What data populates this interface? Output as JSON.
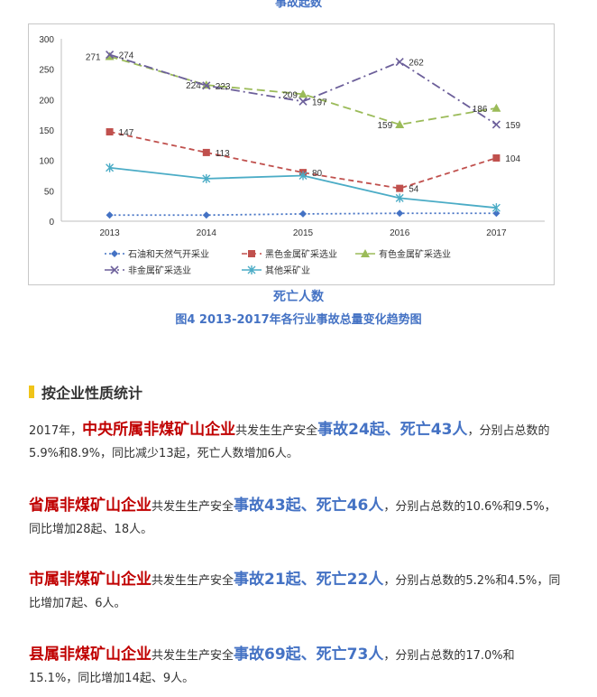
{
  "top_caption": "事故起数",
  "chart_data": {
    "type": "line",
    "categories": [
      "2013",
      "2014",
      "2015",
      "2016",
      "2017"
    ],
    "ylim": [
      0,
      300
    ],
    "yticks": [
      "0",
      "50",
      "100",
      "150",
      "200",
      "250",
      "300"
    ],
    "legend_position": "bottom",
    "series": [
      {
        "name": "石油和天然气开采业",
        "color": "#4472c4",
        "style": "dotted",
        "marker": "diamond",
        "values": [
          10,
          10,
          12,
          13,
          13
        ],
        "labels": []
      },
      {
        "name": "黑色金属矿采选业",
        "color": "#c0504d",
        "style": "dashed",
        "marker": "square",
        "values": [
          147,
          113,
          80,
          54,
          104
        ],
        "labels": [
          "147",
          "113",
          "80",
          "54",
          "104"
        ]
      },
      {
        "name": "有色金属矿采选业",
        "color": "#9bbb59",
        "style": "longdash",
        "marker": "triangle",
        "values": [
          271,
          224,
          209,
          159,
          186
        ],
        "labels": [
          "271",
          "224",
          "209",
          "159",
          "186"
        ]
      },
      {
        "name": "非金属矿采选业",
        "color": "#6c5f9a",
        "style": "dashdot",
        "marker": "x",
        "values": [
          274,
          223,
          197,
          262,
          159
        ],
        "labels": [
          "274",
          "223",
          "197",
          "262",
          "159"
        ]
      },
      {
        "name": "其他采矿业",
        "color": "#4bacc6",
        "style": "solid",
        "marker": "star",
        "values": [
          88,
          70,
          75,
          38,
          22
        ],
        "labels": []
      }
    ]
  },
  "chart_caption": "死亡人数",
  "figure_caption": "图4  2013-2017年各行业事故总量变化趋势图",
  "section_title": "按企业性质统计",
  "paragraphs": [
    {
      "prefix": "2017年，",
      "entity": "中央所属非煤矿山企业",
      "mid": "共发生生产安全",
      "stats": "事故24起、死亡43人",
      "suffix": "，分别占总数的5.9%和8.9%，同比减少13起，死亡人数增加6人。"
    },
    {
      "prefix": "",
      "entity": "省属非煤矿山企业",
      "mid": "共发生生产安全",
      "stats": "事故43起、死亡46人",
      "suffix": "，分别占总数的10.6%和9.5%，同比增加28起、18人。"
    },
    {
      "prefix": "",
      "entity": "市属非煤矿山企业",
      "mid": "共发生生产安全",
      "stats": "事故21起、死亡22人",
      "suffix": "，分别占总数的5.2%和4.5%，同比增加7起、6人。"
    },
    {
      "prefix": "",
      "entity": "县属非煤矿山企业",
      "mid": "共发生生产安全",
      "stats": "事故69起、死亡73人",
      "suffix": "，分别占总数的17.0%和15.1%，同比增加14起、9人。"
    }
  ]
}
